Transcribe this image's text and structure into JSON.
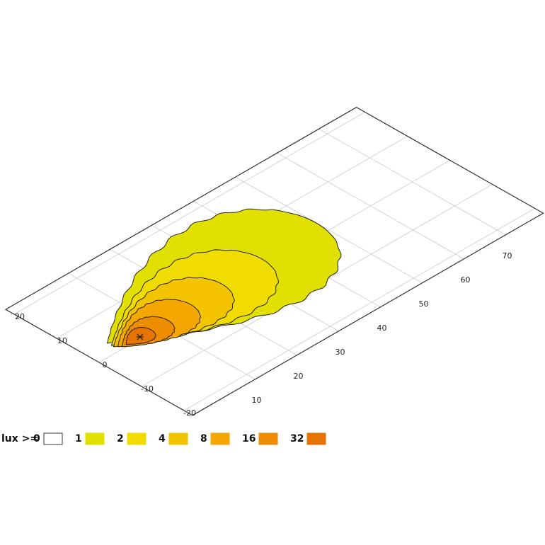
{
  "chart_data": {
    "type": "isolux",
    "xlim": [
      -5,
      79
    ],
    "ylim": [
      -22,
      22
    ],
    "xticks": [
      10,
      20,
      30,
      40,
      50,
      60,
      70
    ],
    "yticks": [
      -20,
      -10,
      0,
      10,
      20
    ],
    "grid": true,
    "legend": {
      "title": "lux >=",
      "base_level": 0,
      "base_color": "#ffffff"
    },
    "source": [
      5.2,
      0.4
    ],
    "contours": [
      {
        "level": 1,
        "color": "#e2e000",
        "x_range": [
          0,
          50
        ],
        "y_center": 3,
        "y_half": 16
      },
      {
        "level": 2,
        "color": "#f0dc00",
        "x_range": [
          0,
          36
        ],
        "y_center": 2,
        "y_half": 11
      },
      {
        "level": 4,
        "color": "#f5c400",
        "x_range": [
          0,
          26
        ],
        "y_center": 1.5,
        "y_half": 8
      },
      {
        "level": 8,
        "color": "#f4a700",
        "x_range": [
          0.5,
          18
        ],
        "y_center": 1,
        "y_half": 6
      },
      {
        "level": 16,
        "color": "#ee8c00",
        "x_range": [
          1,
          12
        ],
        "y_center": 0.5,
        "y_half": 4
      },
      {
        "level": 32,
        "color": "#e77400",
        "x_range": [
          2,
          8
        ],
        "y_center": 0.5,
        "y_half": 2.5
      }
    ]
  }
}
